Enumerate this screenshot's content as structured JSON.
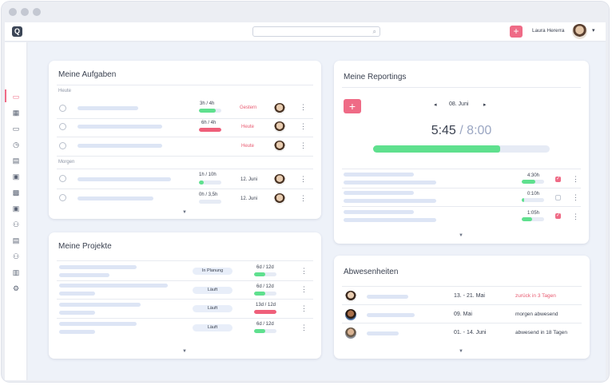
{
  "topbar": {
    "logo": "Q",
    "search_placeholder": "",
    "search_icon": "search-icon",
    "add_icon": "+",
    "user_name": "Laura Hererra",
    "dropdown_icon": "▾"
  },
  "sidebar": {
    "items": [
      {
        "name": "monitor",
        "glyph": "▭",
        "active": true
      },
      {
        "name": "dashboard",
        "glyph": "▦",
        "active": false
      },
      {
        "name": "inbox",
        "glyph": "▭",
        "active": false
      },
      {
        "name": "timer",
        "glyph": "◷",
        "active": false
      },
      {
        "name": "buildings",
        "glyph": "▤",
        "active": false
      },
      {
        "name": "documents",
        "glyph": "▣",
        "active": false
      },
      {
        "name": "calendar",
        "glyph": "▩",
        "active": false
      },
      {
        "name": "copy",
        "glyph": "▣",
        "active": false
      },
      {
        "name": "team",
        "glyph": "⚇",
        "active": false
      },
      {
        "name": "company",
        "glyph": "▤",
        "active": false
      },
      {
        "name": "users",
        "glyph": "⚇",
        "active": false
      },
      {
        "name": "reports",
        "glyph": "▥",
        "active": false
      },
      {
        "name": "settings",
        "glyph": "⚙",
        "active": false
      }
    ]
  },
  "tasks": {
    "title": "Meine Aufgaben",
    "today_label": "Heute",
    "tomorrow_label": "Morgen",
    "today_rows": [
      {
        "time": "3h / 4h",
        "due": "Gestern",
        "progress": 0.75,
        "color": "#5fe08e",
        "due_red": true
      },
      {
        "time": "6h / 4h",
        "due": "Heute",
        "progress": 1.0,
        "color": "#ef5f7a",
        "due_red": true
      },
      {
        "time": "",
        "due": "Heute",
        "progress": null,
        "color": "",
        "due_red": true
      }
    ],
    "tomorrow_rows": [
      {
        "time": "1h / 10h",
        "due": "12. Juni",
        "progress": 0.2,
        "color": "#5fe08e",
        "due_red": false
      },
      {
        "time": "0h / 3,5h",
        "due": "12. Juni",
        "progress": 0.0,
        "color": "#5fe08e",
        "due_red": false
      }
    ]
  },
  "projects": {
    "title": "Meine Projekte",
    "rows": [
      {
        "status": "In Planung",
        "days": "6d / 12d",
        "progress": 0.5,
        "color": "#5fe08e"
      },
      {
        "status": "Läuft",
        "days": "6d / 12d",
        "progress": 0.5,
        "color": "#5fe08e"
      },
      {
        "status": "Läuft",
        "days": "13d / 12d",
        "progress": 1.0,
        "color": "#ef5f7a"
      },
      {
        "status": "Läuft",
        "days": "6d / 12d",
        "progress": 0.5,
        "color": "#5fe08e"
      }
    ]
  },
  "reportings": {
    "title": "Meine Reportings",
    "add_icon": "+",
    "prev_icon": "◂",
    "next_icon": "▸",
    "date": "08. Juni",
    "logged": "5:45",
    "separator": " / ",
    "target": "8:00",
    "total_progress": 0.72,
    "rows": [
      {
        "time": "4:30h",
        "progress": 0.6,
        "checked": true
      },
      {
        "time": "0:10h",
        "progress": 0.1,
        "checked": false
      },
      {
        "time": "1:05h",
        "progress": 0.45,
        "checked": true
      }
    ]
  },
  "absences": {
    "title": "Abwesenheiten",
    "rows": [
      {
        "dates": "13. - 21. Mai",
        "status": "zurück in 3 Tagen",
        "status_red": true
      },
      {
        "dates": "09. Mai",
        "status": "morgen abwesend",
        "status_red": false
      },
      {
        "dates": "01. - 14. Juni",
        "status": "abwesend in 18 Tagen",
        "status_red": false
      }
    ]
  },
  "colors": {
    "accent": "#ef6b86",
    "green": "#5fe08e",
    "red": "#ef5f7a",
    "placeholder": "#dde5f5"
  }
}
